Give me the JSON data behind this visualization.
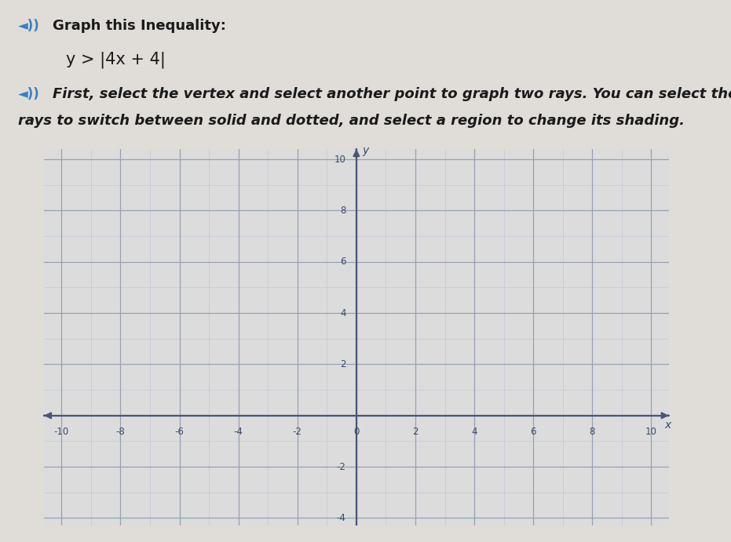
{
  "title_line1": "Graph this Inequality:",
  "equation": "y > |4x + 4|",
  "instruction_line1": "First, select the vertex and select another point to graph two rays. You can select the",
  "instruction_line2": "rays to switch between solid and dotted, and select a region to change its shading.",
  "xlim": [
    -10,
    10
  ],
  "ylim": [
    -4,
    10
  ],
  "xticks": [
    -10,
    -8,
    -6,
    -4,
    -2,
    0,
    2,
    4,
    6,
    8,
    10
  ],
  "yticks": [
    -4,
    -2,
    2,
    4,
    6,
    8,
    10
  ],
  "grid_color": "#b0b8cc",
  "axis_color": "#4a5578",
  "background_color": "#e8e8e8",
  "plot_bg_color": "#dcdcdc",
  "text_color": "#1a1a1a",
  "tick_label_color": "#3a4a6a",
  "xlabel": "x",
  "ylabel": "y",
  "fig_bg_color": "#e0ddd8",
  "minor_grid_color": "#c5cad8",
  "major_grid_color": "#9aa0b4",
  "title_fontsize": 13,
  "eq_fontsize": 14,
  "instruction_fontsize": 13,
  "audio_color": "#3a7fc1"
}
